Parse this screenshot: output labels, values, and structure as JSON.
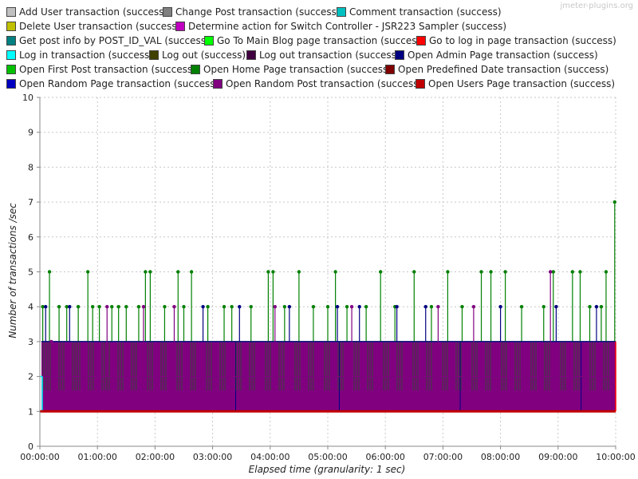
{
  "watermark": "jmeter-plugins.org",
  "chart_data": {
    "type": "line",
    "title": "",
    "xlabel": "Elapsed time (granularity: 1 sec)",
    "ylabel": "Number of transactions /sec",
    "xlim": [
      "00:00:00",
      "10:00:00"
    ],
    "ylim": [
      0,
      10
    ],
    "x_ticks": [
      "00:00:00",
      "01:00:00",
      "02:00:00",
      "03:00:00",
      "04:00:00",
      "05:00:00",
      "06:00:00",
      "07:00:00",
      "08:00:00",
      "09:00:00",
      "10:00:00"
    ],
    "y_ticks": [
      "0",
      "1",
      "2",
      "3",
      "4",
      "5",
      "6",
      "7",
      "8",
      "9",
      "10"
    ],
    "grid": true,
    "legend_position": "top",
    "series": [
      {
        "name": "Add User transaction (success)",
        "color": "#c0c0c0",
        "baseline": 1,
        "peaks": []
      },
      {
        "name": "Change Post transaction (success)",
        "color": "#808080",
        "baseline": 1,
        "peaks": []
      },
      {
        "name": "Comment transaction (success)",
        "color": "#00c0c0",
        "baseline": 1,
        "peaks": []
      },
      {
        "name": "Delete User transaction (success)",
        "color": "#c0c000",
        "baseline": 1,
        "peaks": []
      },
      {
        "name": "Determine action for Switch Controller - JSR223 Sampler (success)",
        "color": "#c000c0",
        "baseline": 1,
        "peaks": []
      },
      {
        "name": "Get post info by POST_ID_VAL (success)",
        "color": "#008080",
        "baseline": 1,
        "peaks": []
      },
      {
        "name": "Go To Main Blog page transaction (success)",
        "color": "#00ff00",
        "baseline": 1,
        "peaks": []
      },
      {
        "name": "Go to log in page transaction (success)",
        "color": "#ff0000",
        "baseline": 1,
        "peaks": []
      },
      {
        "name": "Log in transaction (success)",
        "color": "#00ffff",
        "baseline": 2,
        "peaks": [
          {
            "t": "00:00:10",
            "v": 2
          }
        ]
      },
      {
        "name": "Log out (success)",
        "color": "#404000",
        "baseline": 1,
        "peaks": []
      },
      {
        "name": "Log out transaction (success)",
        "color": "#400040",
        "baseline": 1,
        "peaks": []
      },
      {
        "name": "Open Admin Page transaction (success)",
        "color": "#000080",
        "baseline": 3,
        "peaks": [
          {
            "t": "00:06:00",
            "v": 4
          },
          {
            "t": "00:31:00",
            "v": 4
          },
          {
            "t": "02:50:00",
            "v": 4
          },
          {
            "t": "03:28:00",
            "v": 4
          },
          {
            "t": "04:20:00",
            "v": 4
          },
          {
            "t": "05:10:00",
            "v": 4
          },
          {
            "t": "05:33:00",
            "v": 4
          },
          {
            "t": "06:12:00",
            "v": 4
          },
          {
            "t": "06:42:00",
            "v": 4
          },
          {
            "t": "08:00:00",
            "v": 4
          },
          {
            "t": "08:58:00",
            "v": 4
          },
          {
            "t": "09:40:00",
            "v": 4
          }
        ]
      },
      {
        "name": "Open First Post transaction (success)",
        "color": "#00c000",
        "baseline": 1,
        "peaks": []
      },
      {
        "name": "Open Home Page transaction (success)",
        "color": "#008000",
        "baseline": 3,
        "peaks": [
          {
            "t": "00:03:00",
            "v": 4
          },
          {
            "t": "00:10:00",
            "v": 5
          },
          {
            "t": "00:20:00",
            "v": 4
          },
          {
            "t": "00:28:00",
            "v": 4
          },
          {
            "t": "00:40:00",
            "v": 4
          },
          {
            "t": "00:50:00",
            "v": 5
          },
          {
            "t": "00:55:00",
            "v": 4
          },
          {
            "t": "01:02:00",
            "v": 4
          },
          {
            "t": "01:15:00",
            "v": 4
          },
          {
            "t": "01:22:00",
            "v": 4
          },
          {
            "t": "01:30:00",
            "v": 4
          },
          {
            "t": "01:43:00",
            "v": 4
          },
          {
            "t": "01:50:00",
            "v": 5
          },
          {
            "t": "01:55:00",
            "v": 5
          },
          {
            "t": "02:10:00",
            "v": 4
          },
          {
            "t": "02:24:00",
            "v": 5
          },
          {
            "t": "02:30:00",
            "v": 4
          },
          {
            "t": "02:38:00",
            "v": 5
          },
          {
            "t": "02:55:00",
            "v": 4
          },
          {
            "t": "03:12:00",
            "v": 4
          },
          {
            "t": "03:20:00",
            "v": 4
          },
          {
            "t": "03:40:00",
            "v": 4
          },
          {
            "t": "03:58:00",
            "v": 5
          },
          {
            "t": "04:03:00",
            "v": 5
          },
          {
            "t": "04:15:00",
            "v": 4
          },
          {
            "t": "04:30:00",
            "v": 5
          },
          {
            "t": "04:45:00",
            "v": 4
          },
          {
            "t": "05:00:00",
            "v": 4
          },
          {
            "t": "05:08:00",
            "v": 5
          },
          {
            "t": "05:20:00",
            "v": 4
          },
          {
            "t": "05:40:00",
            "v": 4
          },
          {
            "t": "05:55:00",
            "v": 5
          },
          {
            "t": "06:10:00",
            "v": 4
          },
          {
            "t": "06:30:00",
            "v": 5
          },
          {
            "t": "06:48:00",
            "v": 4
          },
          {
            "t": "07:05:00",
            "v": 5
          },
          {
            "t": "07:20:00",
            "v": 4
          },
          {
            "t": "07:40:00",
            "v": 5
          },
          {
            "t": "07:50:00",
            "v": 5
          },
          {
            "t": "08:05:00",
            "v": 5
          },
          {
            "t": "08:22:00",
            "v": 4
          },
          {
            "t": "08:45:00",
            "v": 4
          },
          {
            "t": "08:55:00",
            "v": 5
          },
          {
            "t": "09:15:00",
            "v": 5
          },
          {
            "t": "09:23:00",
            "v": 5
          },
          {
            "t": "09:33:00",
            "v": 4
          },
          {
            "t": "09:45:00",
            "v": 4
          },
          {
            "t": "09:50:00",
            "v": 5
          },
          {
            "t": "09:59:00",
            "v": 7
          }
        ]
      },
      {
        "name": "Open Predefined Date transaction (success)",
        "color": "#800000",
        "baseline": 1,
        "peaks": []
      },
      {
        "name": "Open Random Page transaction (success)",
        "color": "#0000c0",
        "baseline": 2,
        "peaks": []
      },
      {
        "name": "Open Random Post transaction (success)",
        "color": "#800080",
        "baseline": 2,
        "peaks": [
          {
            "t": "00:12:00",
            "v": 3
          },
          {
            "t": "01:10:00",
            "v": 4
          },
          {
            "t": "01:48:00",
            "v": 4
          },
          {
            "t": "02:20:00",
            "v": 4
          },
          {
            "t": "04:05:00",
            "v": 4
          },
          {
            "t": "05:25:00",
            "v": 4
          },
          {
            "t": "06:55:00",
            "v": 4
          },
          {
            "t": "07:32:00",
            "v": 4
          },
          {
            "t": "08:52:00",
            "v": 5
          }
        ]
      },
      {
        "name": "Open Users Page transaction (success)",
        "color": "#c00000",
        "baseline": 1,
        "peaks": []
      }
    ]
  }
}
